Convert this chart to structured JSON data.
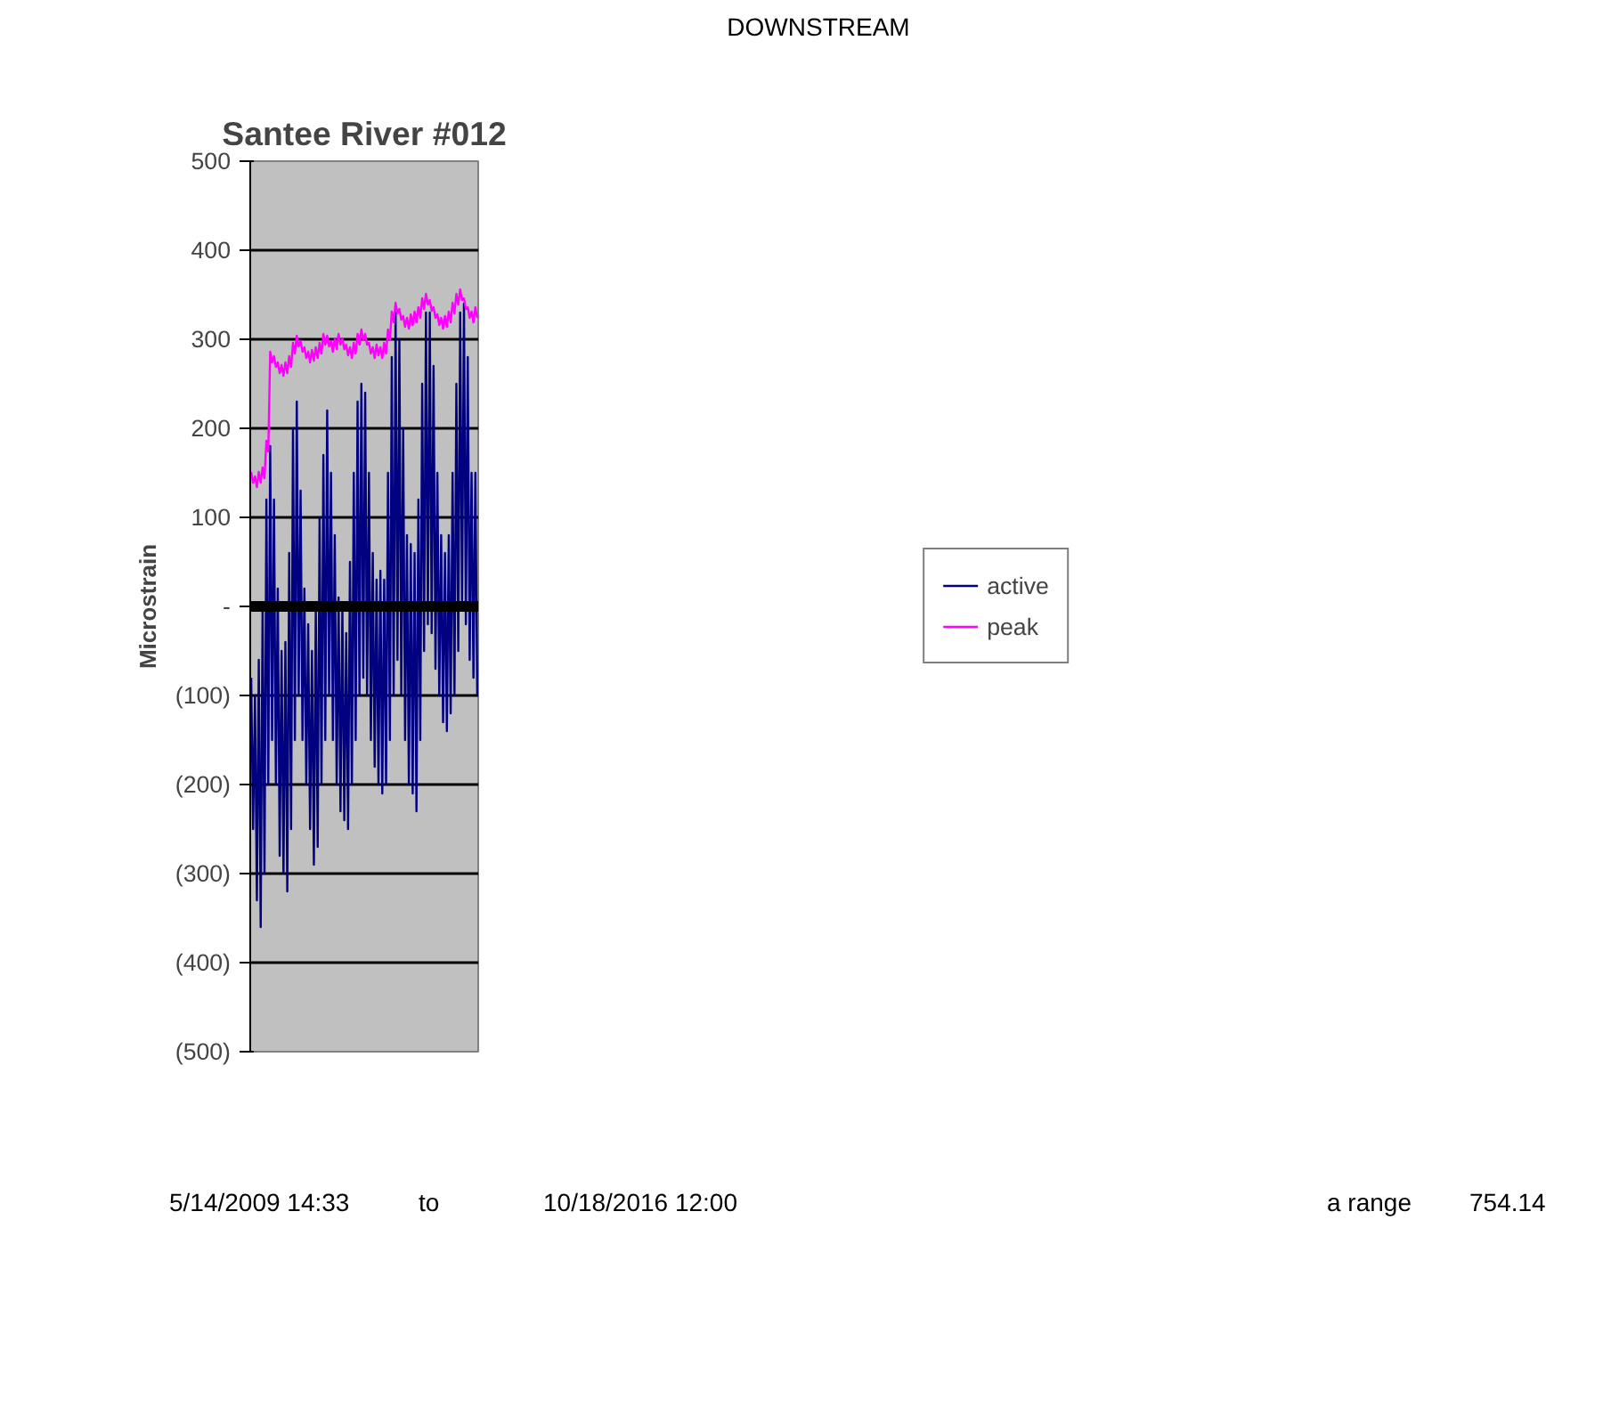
{
  "chart_data": {
    "type": "line",
    "title": "Santee River #012",
    "ylabel": "Microstrain",
    "annotations": [
      "DOWNSTREAM",
      "5/14/2009 14:33",
      "to",
      "10/18/2016 12:00",
      "a range",
      "754.14"
    ],
    "categories": [
      null,
      null,
      null,
      null,
      null,
      null,
      null,
      null,
      null,
      null,
      null,
      null,
      null,
      null,
      null,
      null,
      null,
      null,
      null,
      null,
      null,
      null,
      null,
      null,
      null,
      null,
      null,
      null,
      null,
      null,
      null,
      null,
      null,
      null,
      null,
      null,
      null,
      null,
      null,
      null,
      null,
      null,
      null,
      null,
      null,
      null,
      null,
      null,
      null,
      null,
      null,
      null,
      null,
      null,
      null,
      null,
      null,
      null,
      null,
      null,
      null,
      null,
      null,
      null,
      null,
      null,
      null,
      null,
      null,
      null,
      null,
      null,
      null,
      null,
      null,
      null,
      null,
      null,
      null,
      null,
      null,
      null,
      null,
      null,
      null,
      null,
      null,
      null,
      null,
      null,
      null,
      null,
      null,
      null,
      null,
      null,
      null,
      null,
      null,
      null,
      null,
      null,
      null,
      null,
      null,
      null,
      null,
      null,
      null,
      null,
      null,
      null,
      null,
      null,
      null,
      null,
      null,
      null,
      null,
      null
    ],
    "series": [
      {
        "name": "active",
        "color": "#000080",
        "values": [
          -80,
          -250,
          -100,
          -330,
          -60,
          -360,
          0,
          -300,
          120,
          -200,
          180,
          -150,
          120,
          -200,
          20,
          -280,
          -50,
          -300,
          -40,
          -320,
          60,
          -250,
          200,
          -150,
          230,
          -100,
          130,
          -150,
          20,
          -200,
          -20,
          -250,
          -50,
          -290,
          0,
          -270,
          100,
          -200,
          170,
          -150,
          220,
          -100,
          150,
          -150,
          80,
          -200,
          10,
          -230,
          0,
          -240,
          -30,
          -250,
          50,
          -200,
          150,
          -150,
          230,
          -100,
          250,
          -80,
          240,
          -100,
          150,
          -150,
          60,
          -180,
          30,
          -200,
          40,
          -210,
          30,
          -200,
          150,
          -150,
          280,
          -100,
          330,
          -60,
          300,
          -100,
          200,
          -150,
          80,
          -200,
          70,
          -210,
          60,
          -230,
          120,
          -150,
          250,
          -50,
          330,
          -20,
          330,
          -30,
          270,
          -70,
          150,
          -100,
          80,
          -130,
          60,
          -140,
          80,
          -120,
          150,
          -100,
          250,
          -50,
          330,
          0,
          340,
          -20,
          280,
          -60,
          150,
          -80,
          150,
          -100
        ]
      },
      {
        "name": "peak",
        "color": "#ff00ff",
        "values": [
          151,
          139,
          146,
          134,
          151,
          139,
          156,
          144,
          186,
          174,
          286,
          274,
          281,
          269,
          274,
          262,
          271,
          259,
          274,
          262,
          281,
          269,
          296,
          284,
          304,
          292,
          298,
          286,
          291,
          279,
          286,
          274,
          288,
          276,
          291,
          279,
          296,
          284,
          306,
          294,
          304,
          292,
          298,
          286,
          301,
          289,
          306,
          294,
          301,
          289,
          294,
          282,
          291,
          279,
          296,
          284,
          306,
          294,
          311,
          299,
          306,
          294,
          296,
          284,
          291,
          279,
          294,
          282,
          291,
          279,
          296,
          284,
          311,
          299,
          331,
          319,
          341,
          329,
          334,
          322,
          326,
          314,
          324,
          312,
          328,
          316,
          331,
          319,
          336,
          324,
          346,
          334,
          351,
          339,
          344,
          332,
          336,
          324,
          328,
          316,
          324,
          312,
          326,
          314,
          331,
          319,
          341,
          329,
          351,
          339,
          356,
          344,
          346,
          334,
          336,
          324,
          331,
          319,
          336,
          324
        ]
      }
    ],
    "ylim": [
      -500,
      500
    ],
    "yticks": [
      {
        "value": -500,
        "label": "(500)"
      },
      {
        "value": -400,
        "label": "(400)"
      },
      {
        "value": -300,
        "label": "(300)"
      },
      {
        "value": -200,
        "label": "(200)"
      },
      {
        "value": -100,
        "label": "(100)"
      },
      {
        "value": 0,
        "label": "-"
      },
      100,
      200,
      300,
      400,
      500
    ],
    "ref_lines": [
      {
        "axis": "y",
        "value": 0,
        "color": "#000000"
      }
    ],
    "grid": "y",
    "legend": "right",
    "tick_labels": "y",
    "line_style": "solid",
    "marker": "none"
  }
}
